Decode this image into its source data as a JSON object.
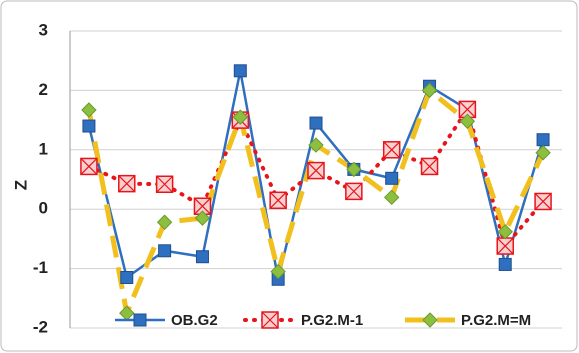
{
  "chart_data": {
    "type": "line",
    "y_label": "Z",
    "categories": [
      null,
      null,
      null,
      null,
      null,
      null,
      null,
      null,
      null,
      null,
      null,
      null,
      null
    ],
    "series": [
      {
        "name": "OB.G2",
        "color": "#2e6fc0",
        "values": [
          1.4,
          -1.15,
          -0.7,
          -0.8,
          2.33,
          -1.18,
          1.45,
          0.67,
          0.52,
          2.07,
          1.68,
          -0.93,
          1.17
        ]
      },
      {
        "name": "P.G2.M-1",
        "color": "#e8141b",
        "values": [
          0.72,
          0.43,
          0.42,
          0.05,
          1.5,
          0.15,
          0.65,
          0.3,
          1.0,
          0.72,
          1.68,
          -0.62,
          0.13
        ]
      },
      {
        "name": "P.G2.M=M",
        "color": "#f2c01e",
        "values": [
          1.67,
          -1.75,
          -0.22,
          -0.15,
          1.55,
          -1.05,
          1.08,
          0.67,
          0.2,
          2.0,
          1.48,
          -0.38,
          0.95
        ]
      }
    ],
    "ylim": [
      -2,
      3
    ],
    "yticks": [
      -2,
      -1,
      0,
      1,
      2,
      3
    ],
    "grid": true,
    "legend": "bottom"
  }
}
